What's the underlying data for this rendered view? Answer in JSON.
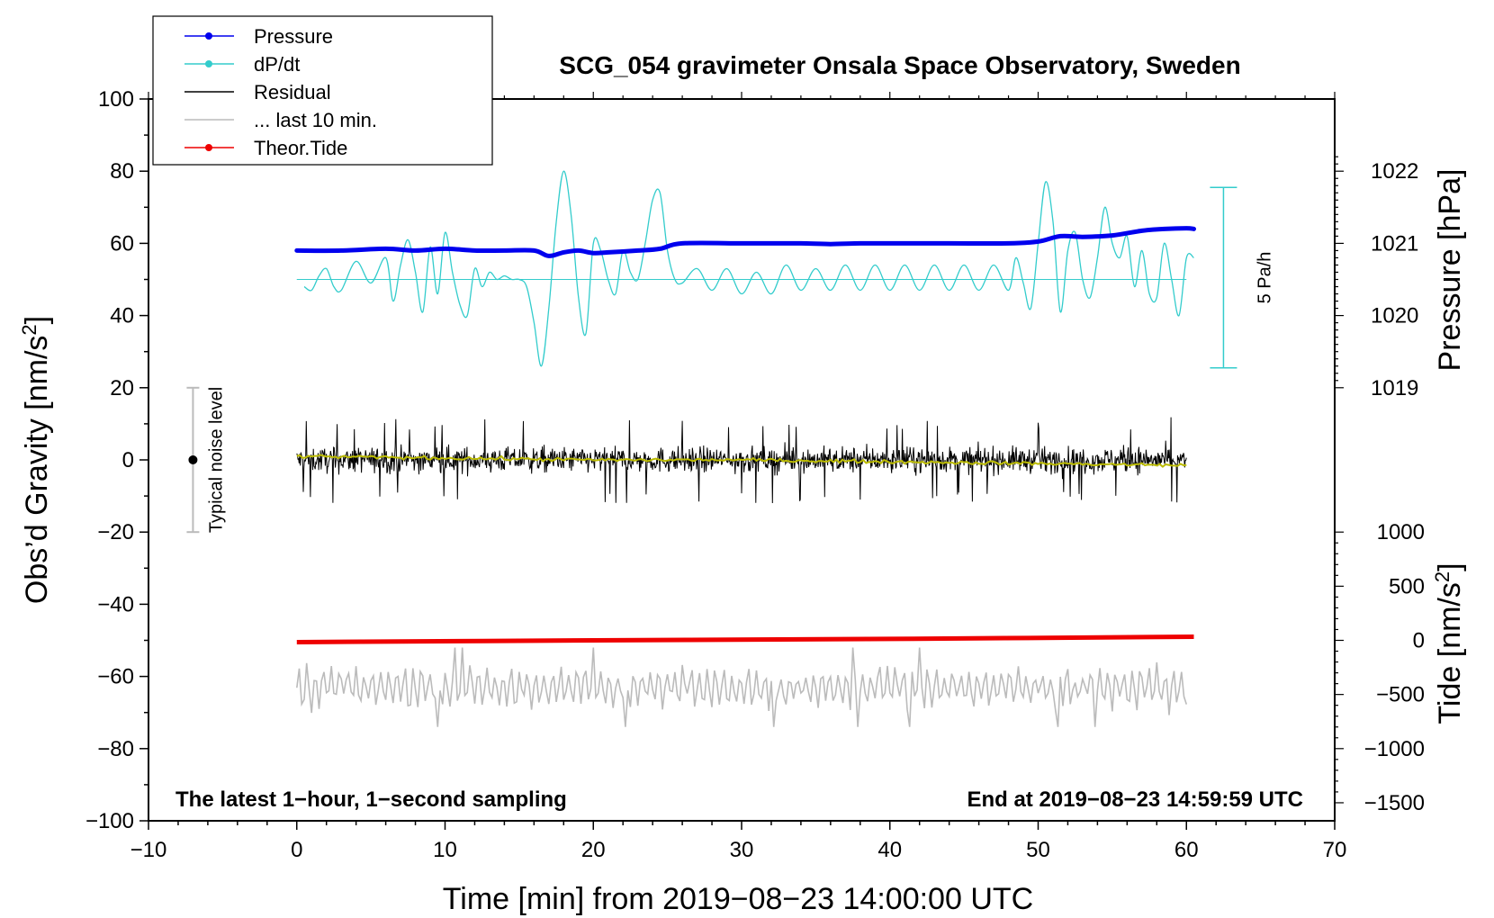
{
  "chart_data": {
    "type": "line",
    "title": "SCG_054 gravimeter Onsala Space Observatory, Sweden",
    "xlabel": "Time [min] from 2019−08−23 14:00:00 UTC",
    "ylabel_left": "Obs’d Gravity [nm/s",
    "ylabel_left_sup": "2",
    "ylabel_left_end": "]",
    "ylabel_right_top": "Pressure [hPa]",
    "ylabel_right_bottom": "Tide [nm/s",
    "ylabel_right_bottom_sup": "2",
    "ylabel_right_bottom_end": "]",
    "xlim": [
      -10,
      70
    ],
    "ylim": [
      -100,
      100
    ],
    "x_ticks": [
      -10,
      0,
      10,
      20,
      30,
      40,
      50,
      60,
      70
    ],
    "x_tick_labels": [
      "−10",
      "0",
      "10",
      "20",
      "30",
      "40",
      "50",
      "60",
      "70"
    ],
    "y_ticks": [
      -100,
      -80,
      -60,
      -40,
      -20,
      0,
      20,
      40,
      60,
      80,
      100
    ],
    "y_tick_labels": [
      "−100",
      "−80",
      "−60",
      "−40",
      "−20",
      "0",
      "20",
      "40",
      "60",
      "80",
      "100"
    ],
    "pressure_axis": {
      "ticks": [
        1019,
        1020,
        1021,
        1022
      ],
      "tick_labels": [
        "1019",
        "1020",
        "1021",
        "1022"
      ],
      "gravity_at_1020": 40,
      "gravity_per_hPa": 20
    },
    "tide_axis": {
      "ticks": [
        -1500,
        -1000,
        -500,
        0,
        500,
        1000
      ],
      "tick_labels": [
        "−1500",
        "−1000",
        "−500",
        "0",
        "500",
        "1000"
      ],
      "gravity_at_0": -50,
      "gravity_per_unit": 0.03
    },
    "legend": [
      {
        "label": "Pressure",
        "color": "#0000ee",
        "marker": true
      },
      {
        "label": "dP/dt",
        "color": "#33cccc",
        "marker": true
      },
      {
        "label": "Residual",
        "color": "#000000",
        "marker": false
      },
      {
        "label": "... last 10 min.",
        "color": "#bbbbbb",
        "marker": false
      },
      {
        "label": "Theor.Tide",
        "color": "#ee0000",
        "marker": true
      }
    ],
    "annotations": {
      "bottom_left": "The latest 1−hour, 1−second sampling",
      "bottom_right": "End at 2019−08−23 14:59:59 UTC",
      "noise_label": "Typical noise level",
      "dpdt_scale_label": "5 Pa/h",
      "noise_bar": {
        "x": -7,
        "center": 0,
        "half_range": 20
      },
      "dpdt_scale_bar": {
        "x": 62.5,
        "y_top": 75.5,
        "y_bottom": 25.5
      }
    },
    "series": [
      {
        "name": "Pressure",
        "color": "#0000ee",
        "unit_note": "plotted in gravity-axis units",
        "x": [
          0,
          3,
          6,
          8,
          10,
          12,
          14,
          16,
          17,
          18,
          19,
          20,
          21,
          23,
          24.5,
          26,
          30,
          32,
          34,
          36,
          38,
          40,
          44,
          48,
          50,
          51.5,
          53,
          55,
          57,
          58.5,
          60,
          60.5
        ],
        "y": [
          58,
          58,
          58.5,
          58,
          58.5,
          58,
          58,
          58,
          56.5,
          57.5,
          58,
          57.3,
          57.5,
          58,
          58.5,
          60,
          60,
          60,
          60,
          59.8,
          60,
          60,
          60,
          60,
          60.5,
          62,
          61.8,
          62.2,
          63.5,
          64,
          64.2,
          64
        ]
      },
      {
        "name": "dP/dt",
        "color": "#33cccc",
        "baseline": 50,
        "x": [
          0.5,
          1,
          1.5,
          2,
          2.5,
          3,
          4,
          5,
          6,
          6.5,
          7,
          7.5,
          8,
          8.5,
          9,
          9.5,
          10,
          10.5,
          11,
          11.5,
          12,
          12.5,
          13,
          13.5,
          14,
          14.5,
          15,
          15.5,
          16,
          16.5,
          17,
          17.5,
          18,
          18.5,
          19,
          19.5,
          20,
          20.5,
          21,
          21.5,
          22,
          22.5,
          23,
          23.5,
          24,
          24.5,
          25,
          25.5,
          26,
          27,
          28,
          29,
          30,
          31,
          32,
          33,
          34,
          35,
          36,
          37,
          38,
          39,
          40,
          41,
          42,
          43,
          44,
          45,
          46,
          47,
          48,
          48.5,
          49,
          49.5,
          50,
          50.5,
          51,
          51.5,
          52,
          52.5,
          53,
          53.5,
          54,
          54.5,
          55,
          55.5,
          56,
          56.5,
          57,
          57.5,
          58,
          58.5,
          59,
          59.5,
          60,
          60.5
        ],
        "y": [
          48,
          47,
          51,
          53,
          48,
          47,
          55,
          49,
          56,
          44,
          54,
          61,
          52,
          41,
          59,
          46,
          63,
          52,
          43,
          40,
          53,
          48,
          52,
          50,
          51,
          50,
          50,
          48,
          38,
          26,
          42,
          66,
          80,
          68,
          45,
          35,
          60,
          58,
          50,
          46,
          58,
          52,
          50,
          60,
          72,
          74,
          58,
          50,
          49,
          53,
          47,
          53,
          46,
          52,
          46,
          54,
          47,
          53,
          47,
          54,
          47,
          54,
          47,
          54,
          47,
          54,
          47,
          54,
          47,
          54,
          47,
          56,
          49,
          42,
          60,
          77,
          66,
          41,
          58,
          63,
          50,
          45,
          56,
          70,
          60,
          56,
          62,
          48,
          58,
          46,
          45,
          60,
          50,
          40,
          56,
          56
        ]
      },
      {
        "name": "Residual",
        "color": "#000000",
        "x_range": [
          0,
          60
        ],
        "center": 0,
        "typical_amplitude": 5,
        "max_amplitude": 12
      },
      {
        "name": "Residual smoothed",
        "color": "#bbbb00",
        "x": [
          0,
          10,
          20,
          30,
          40,
          50,
          60
        ],
        "y": [
          1,
          0.5,
          0,
          0,
          -0.5,
          -1,
          -1.5
        ]
      },
      {
        "name": "... last 10 min.",
        "color": "#bbbbbb",
        "x_range": [
          0,
          60
        ],
        "center": -63,
        "typical_amplitude": 5,
        "max_amplitude": 11
      },
      {
        "name": "Theor.Tide",
        "color": "#ee0000",
        "x": [
          0,
          20,
          40,
          60.5
        ],
        "y": [
          -50.5,
          -50,
          -49.6,
          -49
        ]
      }
    ]
  }
}
